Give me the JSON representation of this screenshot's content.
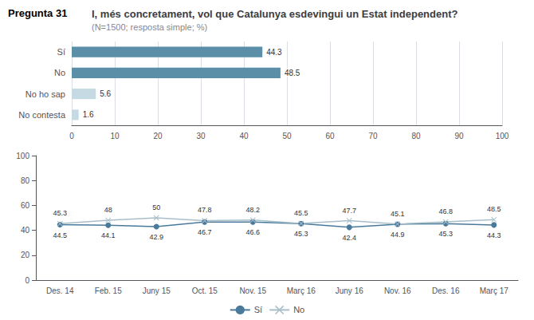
{
  "chart_data": [
    {
      "type": "bar",
      "title": "I, més concretament, vol que Catalunya esdevingui un Estat independent?",
      "subtitle": "(N=1500; resposta simple; %)",
      "annotations": [
        "Pregunta 31"
      ],
      "orientation": "horizontal",
      "categories": [
        "Sí",
        "No",
        "No ho sap",
        "No contesta"
      ],
      "values": [
        44.3,
        48.5,
        5.6,
        1.6
      ],
      "colors": [
        "#5b8fa8",
        "#5b8fa8",
        "#c5dae3",
        "#c5dae3"
      ],
      "xlim": [
        0,
        100
      ],
      "xticks": [
        0,
        10,
        20,
        30,
        40,
        50,
        60,
        70,
        80,
        90,
        100
      ],
      "grid": true,
      "data_labels": true
    },
    {
      "type": "line",
      "categories": [
        "Des. 14",
        "Feb. 15",
        "Juny 15",
        "Oct. 15",
        "Nov. 15",
        "Març 16",
        "Juny 16",
        "Nov. 16",
        "Des. 16",
        "Març 17"
      ],
      "series": [
        {
          "name": "Sí",
          "color": "#4a7a9b",
          "marker": "circle",
          "values": [
            44.5,
            44.1,
            42.9,
            46.7,
            46.6,
            45.3,
            42.4,
            44.9,
            45.3,
            44.3
          ]
        },
        {
          "name": "No",
          "color": "#a8bfca",
          "marker": "x",
          "values": [
            45.3,
            48.0,
            50.0,
            47.8,
            48.2,
            45.5,
            47.7,
            45.1,
            46.8,
            48.5
          ]
        }
      ],
      "ylim": [
        0,
        100
      ],
      "yticks": [
        0,
        20,
        40,
        60,
        80,
        100
      ],
      "grid": false,
      "legend": "bottom",
      "data_labels": true
    }
  ]
}
